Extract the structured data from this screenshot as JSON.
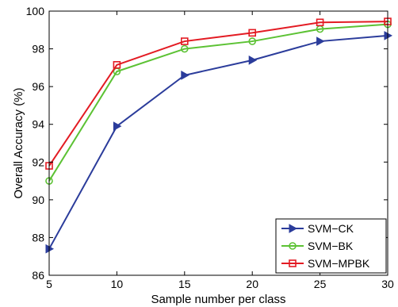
{
  "chart_data": {
    "type": "line",
    "title": "",
    "xlabel": "Sample number per class",
    "ylabel": "Overall Accuracy (%)",
    "x": [
      5,
      10,
      15,
      20,
      25,
      30
    ],
    "xlim": [
      5,
      30
    ],
    "ylim": [
      86,
      100
    ],
    "xticks": [
      "5",
      "10",
      "15",
      "20",
      "25",
      "30"
    ],
    "yticks": [
      "86",
      "88",
      "90",
      "92",
      "94",
      "96",
      "98",
      "100"
    ],
    "grid": false,
    "legend_position": "bottom-right",
    "series": [
      {
        "name": "SVM−CK",
        "color": "#2b3c9b",
        "marker": "triangle-right",
        "values": [
          87.4,
          93.9,
          96.6,
          97.4,
          98.4,
          98.7
        ]
      },
      {
        "name": "SVM−BK",
        "color": "#5cc234",
        "marker": "circle",
        "values": [
          91.0,
          96.8,
          98.0,
          98.4,
          99.05,
          99.3
        ]
      },
      {
        "name": "SVM−MPBK",
        "color": "#e31b23",
        "marker": "square",
        "values": [
          91.8,
          97.15,
          98.4,
          98.85,
          99.4,
          99.45
        ]
      }
    ]
  }
}
